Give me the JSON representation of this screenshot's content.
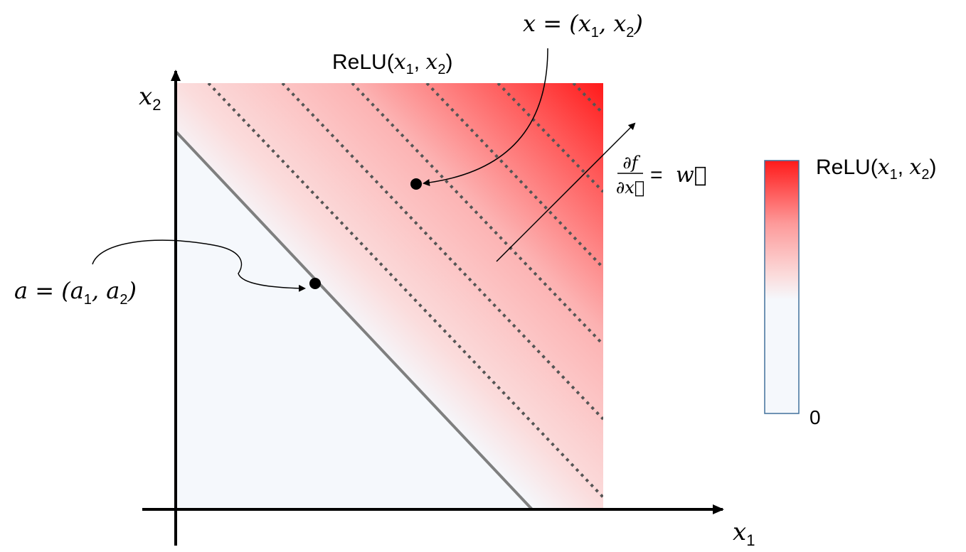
{
  "axes": {
    "x_label": "x",
    "x_sub": "1",
    "y_label": "x",
    "y_sub": "2"
  },
  "plot": {
    "title_func": "ReLU(",
    "title_x1": "x",
    "title_sub1": "1",
    "title_comma": ", ",
    "title_x2": "x",
    "title_sub2": "2",
    "title_close": ")",
    "high_color": "#ff1a1a",
    "low_color": "#f5f8fc"
  },
  "point_x": {
    "label": "x = (x",
    "sub1": "1",
    "mid": ", x",
    "sub2": "2",
    "close": ")"
  },
  "point_a": {
    "label": "a = (a",
    "sub1": "1",
    "mid": ", a",
    "sub2": "2",
    "close": ")"
  },
  "gradient": {
    "numerator": "∂f",
    "denominator": "∂x⃗",
    "equals": "=",
    "rhs": "w⃗"
  },
  "colorbar": {
    "label_func": "ReLU(",
    "label_x1": "x",
    "label_sub1": "1",
    "label_comma": ", ",
    "label_x2": "x",
    "label_sub2": "2",
    "label_close": ")",
    "min_label": "0"
  }
}
